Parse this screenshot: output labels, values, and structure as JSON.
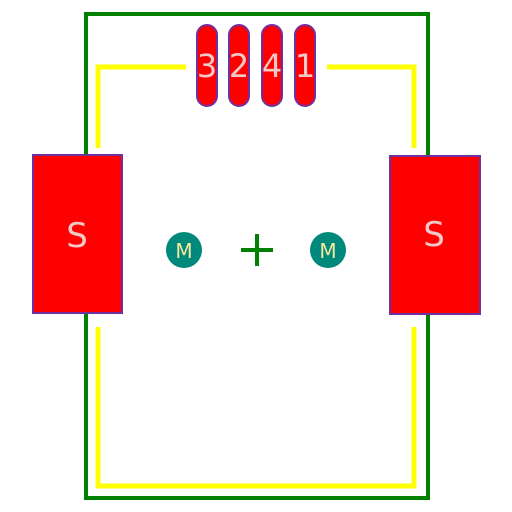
{
  "colors": {
    "background": "#ffffff",
    "outline": "#008000",
    "silkscreen": "#ffff00",
    "pad_fill": "#ff0000",
    "pad_edge": "#7030a0",
    "pad_text": "#f2c8c8",
    "mount_hole": "#00897b",
    "mount_text": "#f5e79e",
    "origin_cross": "#008000"
  },
  "pins": [
    {
      "label": "3"
    },
    {
      "label": "2"
    },
    {
      "label": "4"
    },
    {
      "label": "1"
    }
  ],
  "shield_pads": [
    {
      "label": "S"
    },
    {
      "label": "S"
    }
  ],
  "mount_holes": [
    {
      "label": "M"
    },
    {
      "label": "M"
    }
  ],
  "origin_marker": {
    "symbol": "+"
  }
}
